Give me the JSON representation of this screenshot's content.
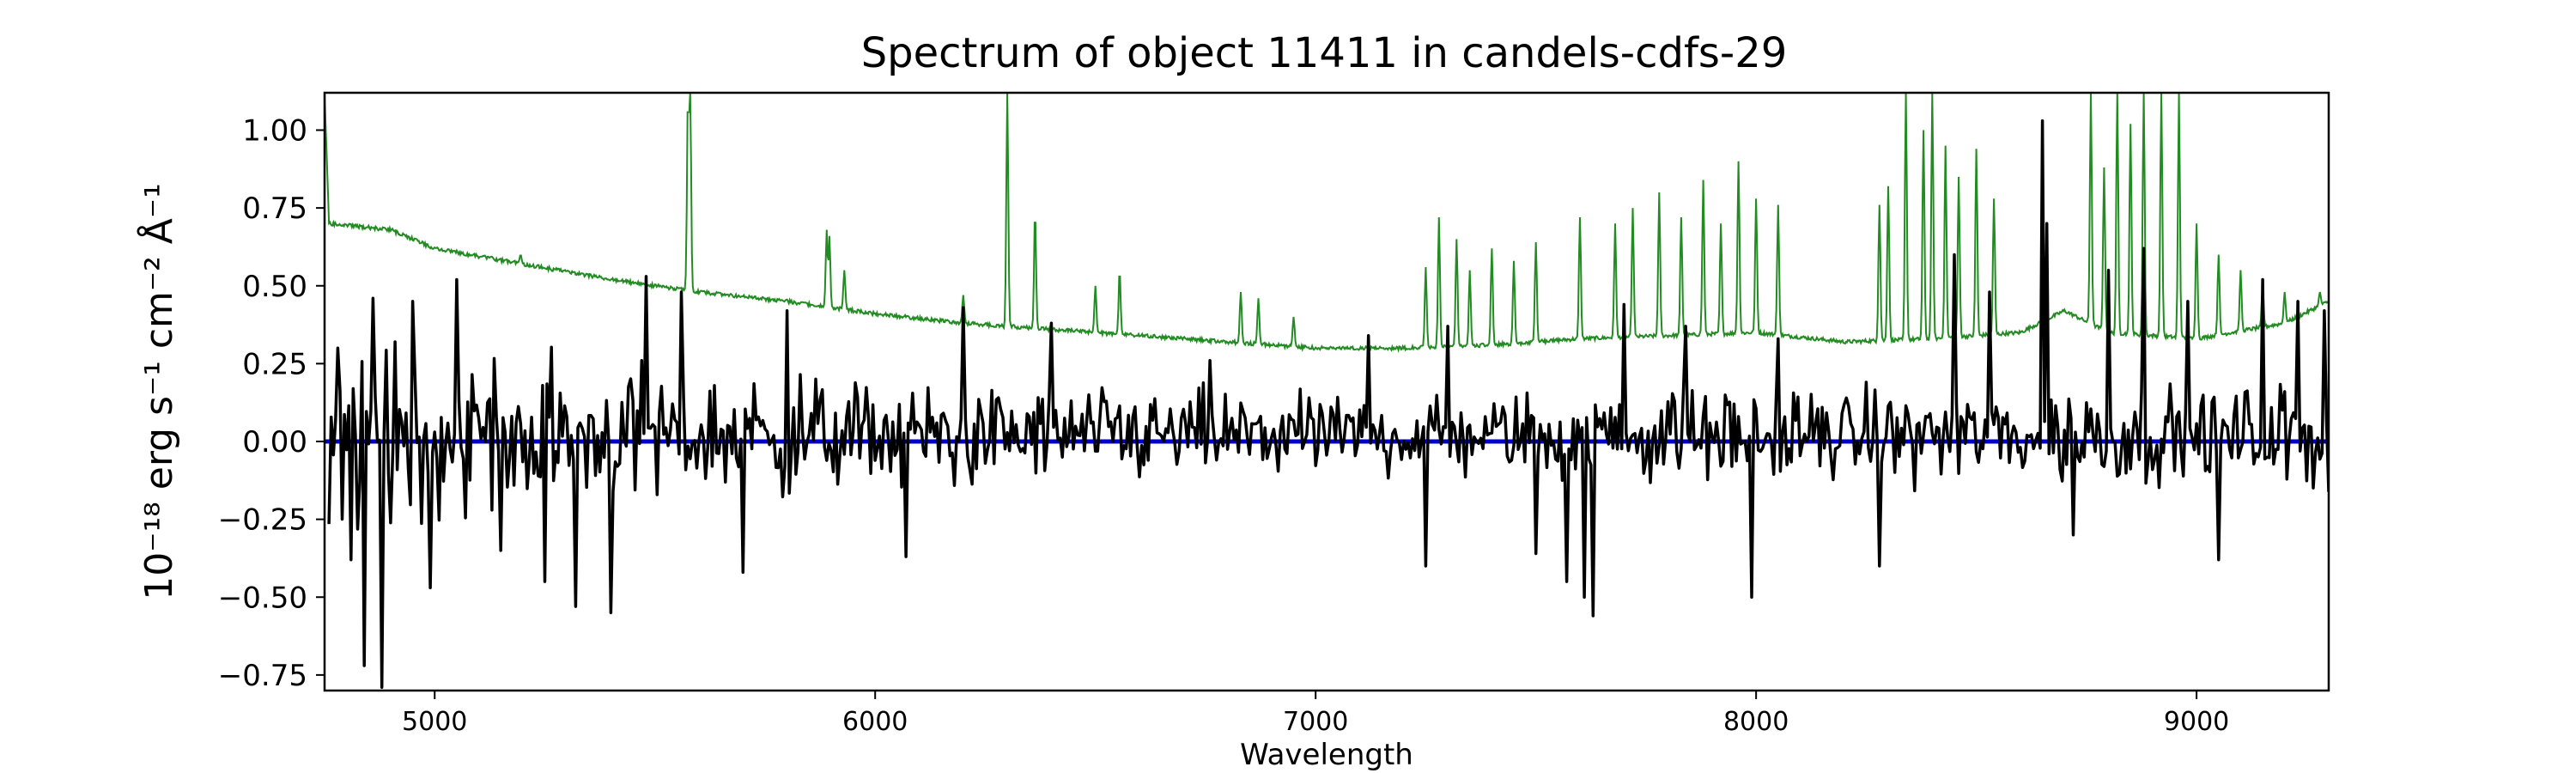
{
  "chart_data": {
    "type": "line",
    "title": "Spectrum of object 11411 in candels-cdfs-29",
    "xlabel": "Wavelength",
    "ylabel": "10⁻¹⁸ erg s⁻¹ cm⁻² Å⁻¹",
    "xlim": [
      4750,
      9300
    ],
    "ylim": [
      -0.8,
      1.12
    ],
    "xticks": [
      5000,
      6000,
      7000,
      8000,
      9000
    ],
    "yticks": [
      -0.75,
      -0.5,
      -0.25,
      0.0,
      0.25,
      0.5,
      0.75,
      1.0
    ],
    "ytick_labels": [
      "−0.75",
      "−0.50",
      "−0.25",
      "0.00",
      "0.25",
      "0.50",
      "0.75",
      "1.00"
    ],
    "grid": false,
    "series": [
      {
        "role": "error",
        "color": "#228b22",
        "continuum": [
          [
            4750,
            1.12
          ],
          [
            4760,
            0.7
          ],
          [
            4900,
            0.68
          ],
          [
            5000,
            0.62
          ],
          [
            5200,
            0.57
          ],
          [
            5400,
            0.52
          ],
          [
            5600,
            0.48
          ],
          [
            5800,
            0.45
          ],
          [
            6000,
            0.41
          ],
          [
            6200,
            0.38
          ],
          [
            6400,
            0.36
          ],
          [
            6600,
            0.34
          ],
          [
            6800,
            0.32
          ],
          [
            7000,
            0.3
          ],
          [
            7200,
            0.3
          ],
          [
            7400,
            0.31
          ],
          [
            7600,
            0.33
          ],
          [
            7800,
            0.34
          ],
          [
            8000,
            0.35
          ],
          [
            8200,
            0.32
          ],
          [
            8400,
            0.33
          ],
          [
            8600,
            0.35
          ],
          [
            8700,
            0.42
          ],
          [
            8800,
            0.35
          ],
          [
            9000,
            0.33
          ],
          [
            9200,
            0.38
          ],
          [
            9300,
            0.45
          ]
        ],
        "lines": [
          [
            5195,
            0.6
          ],
          [
            5575,
            1.12
          ],
          [
            5577,
            1.12
          ],
          [
            5580,
            1.12
          ],
          [
            5890,
            0.68
          ],
          [
            5896,
            0.66
          ],
          [
            5930,
            0.55
          ],
          [
            6200,
            0.47
          ],
          [
            6300,
            1.12
          ],
          [
            6363,
            0.74
          ],
          [
            6500,
            0.5
          ],
          [
            6555,
            0.55
          ],
          [
            6830,
            0.48
          ],
          [
            6870,
            0.46
          ],
          [
            6950,
            0.4
          ],
          [
            7250,
            0.56
          ],
          [
            7280,
            0.72
          ],
          [
            7320,
            0.65
          ],
          [
            7350,
            0.55
          ],
          [
            7400,
            0.62
          ],
          [
            7450,
            0.58
          ],
          [
            7500,
            0.64
          ],
          [
            7600,
            0.72
          ],
          [
            7680,
            0.7
          ],
          [
            7720,
            0.75
          ],
          [
            7780,
            0.8
          ],
          [
            7830,
            0.72
          ],
          [
            7880,
            0.84
          ],
          [
            7920,
            0.7
          ],
          [
            7960,
            0.9
          ],
          [
            8000,
            0.78
          ],
          [
            8050,
            0.76
          ],
          [
            8280,
            0.76
          ],
          [
            8300,
            0.82
          ],
          [
            8340,
            1.12
          ],
          [
            8380,
            1.0
          ],
          [
            8400,
            1.12
          ],
          [
            8430,
            0.95
          ],
          [
            8460,
            0.85
          ],
          [
            8500,
            0.94
          ],
          [
            8540,
            0.78
          ],
          [
            8760,
            1.12
          ],
          [
            8790,
            0.88
          ],
          [
            8820,
            1.12
          ],
          [
            8850,
            1.02
          ],
          [
            8880,
            1.12
          ],
          [
            8920,
            1.12
          ],
          [
            8960,
            1.12
          ],
          [
            9000,
            0.7
          ],
          [
            9050,
            0.6
          ],
          [
            9100,
            0.55
          ],
          [
            9150,
            0.5
          ],
          [
            9200,
            0.48
          ],
          [
            9280,
            0.48
          ]
        ]
      },
      {
        "role": "zero",
        "color": "#0000cd",
        "y": 0
      },
      {
        "role": "flux",
        "color": "#000000",
        "features": [
          [
            4780,
            0.3
          ],
          [
            4810,
            -0.38
          ],
          [
            4840,
            -0.72
          ],
          [
            4860,
            0.46
          ],
          [
            4880,
            -0.79
          ],
          [
            4910,
            0.32
          ],
          [
            4950,
            0.45
          ],
          [
            4990,
            -0.47
          ],
          [
            5050,
            0.52
          ],
          [
            5150,
            -0.35
          ],
          [
            5250,
            -0.45
          ],
          [
            5320,
            -0.53
          ],
          [
            5400,
            -0.55
          ],
          [
            5480,
            0.53
          ],
          [
            5560,
            0.48
          ],
          [
            5700,
            -0.42
          ],
          [
            5800,
            0.42
          ],
          [
            6070,
            -0.37
          ],
          [
            6200,
            0.43
          ],
          [
            6400,
            0.38
          ],
          [
            6760,
            0.26
          ],
          [
            7120,
            0.34
          ],
          [
            7250,
            -0.4
          ],
          [
            7300,
            0.37
          ],
          [
            7500,
            -0.36
          ],
          [
            7570,
            -0.45
          ],
          [
            7610,
            -0.5
          ],
          [
            7630,
            -0.56
          ],
          [
            7700,
            0.44
          ],
          [
            7840,
            0.37
          ],
          [
            7990,
            -0.5
          ],
          [
            8050,
            0.33
          ],
          [
            8280,
            -0.4
          ],
          [
            8450,
            0.6
          ],
          [
            8530,
            0.48
          ],
          [
            8650,
            1.03
          ],
          [
            8660,
            0.7
          ],
          [
            8720,
            -0.3
          ],
          [
            8800,
            0.55
          ],
          [
            8880,
            0.62
          ],
          [
            8980,
            0.45
          ],
          [
            9050,
            -0.38
          ],
          [
            9150,
            0.52
          ],
          [
            9230,
            0.45
          ],
          [
            9290,
            0.42
          ]
        ]
      }
    ]
  }
}
